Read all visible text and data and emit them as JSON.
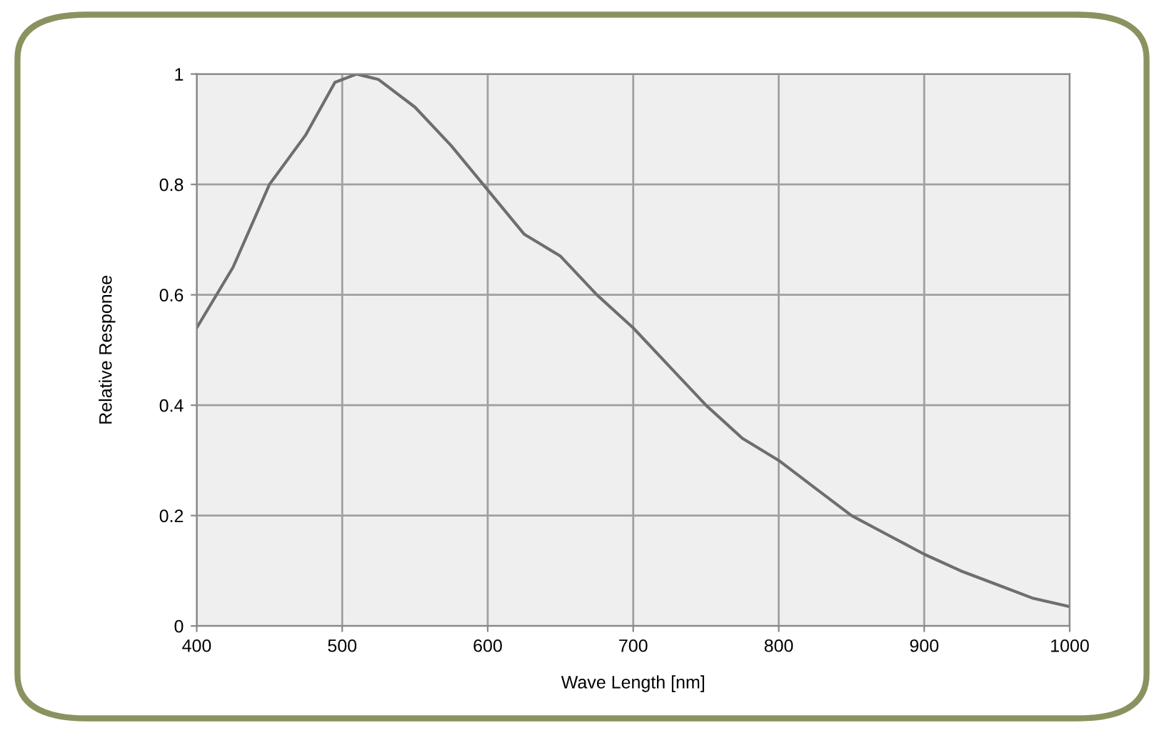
{
  "chart_data": {
    "type": "line",
    "xlabel": "Wave Length [nm]",
    "ylabel": "Relative Response",
    "x": [
      400,
      425,
      450,
      475,
      495,
      510,
      525,
      550,
      575,
      600,
      625,
      650,
      675,
      700,
      725,
      750,
      775,
      800,
      825,
      850,
      875,
      900,
      925,
      950,
      975,
      1000
    ],
    "series": [
      {
        "color": "#6e6e6e",
        "values": [
          0.54,
          0.65,
          0.8,
          0.89,
          0.985,
          1.0,
          0.99,
          0.94,
          0.87,
          0.79,
          0.71,
          0.67,
          0.6,
          0.54,
          0.47,
          0.4,
          0.34,
          0.3,
          0.25,
          0.2,
          0.165,
          0.13,
          0.1,
          0.075,
          0.05,
          0.035
        ]
      }
    ],
    "xlim": [
      400,
      1000
    ],
    "xticks": [
      400,
      500,
      600,
      700,
      800,
      900,
      1000
    ],
    "ylim": [
      0,
      1
    ],
    "yticks": [
      0,
      0.2,
      0.4,
      0.6,
      0.8,
      1
    ],
    "grid": true,
    "marker": "none",
    "line_style": "solid",
    "legend": false
  }
}
